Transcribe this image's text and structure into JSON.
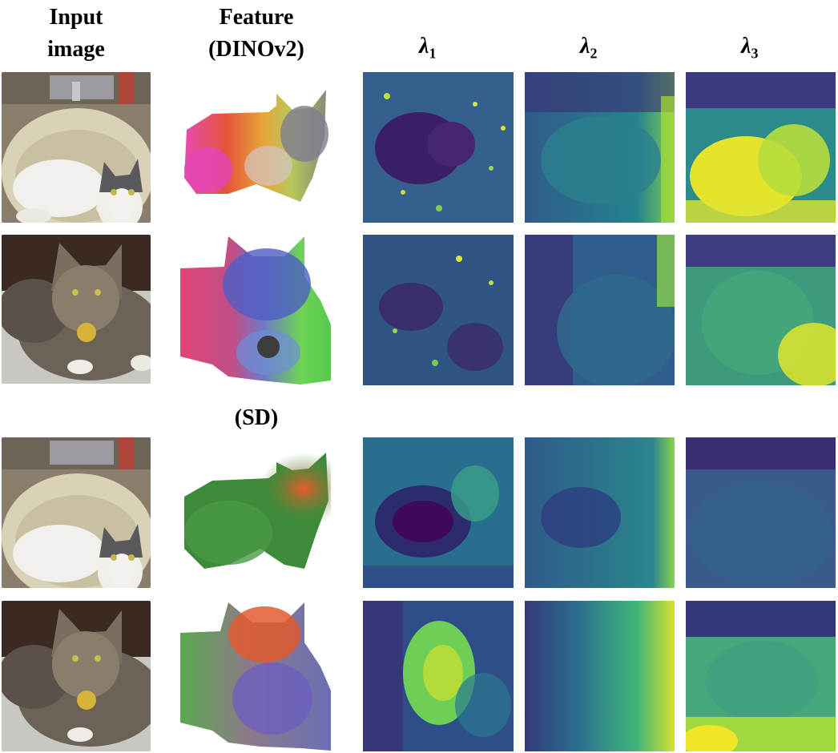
{
  "headers": {
    "input_image_line1": "Input",
    "input_image_line2": "image",
    "feature_line1": "Feature",
    "feature_line2": "(DINOv2)",
    "sd_label": "(SD)",
    "lambda": "λ",
    "lambda1_sub": "1",
    "lambda2_sub": "2",
    "lambda3_sub": "3"
  },
  "colors": {
    "viridis_dark": "#440154",
    "viridis_blue": "#3b528b",
    "viridis_teal": "#21918c",
    "viridis_green": "#5ec962",
    "viridis_yellow": "#fde725",
    "feature_red": "#e04a3a",
    "feature_magenta": "#e64bb0",
    "feature_green": "#4cba45",
    "feature_blue": "#4a58c8",
    "sd_green": "#3e8f3a",
    "sd_orange": "#e8642c"
  },
  "rows": [
    {
      "image": "cat-in-sink",
      "feature_model": "DINOv2"
    },
    {
      "image": "cat-lying",
      "feature_model": "DINOv2"
    },
    {
      "image": "cat-in-sink",
      "feature_model": "SD"
    },
    {
      "image": "cat-lying",
      "feature_model": "SD"
    }
  ]
}
